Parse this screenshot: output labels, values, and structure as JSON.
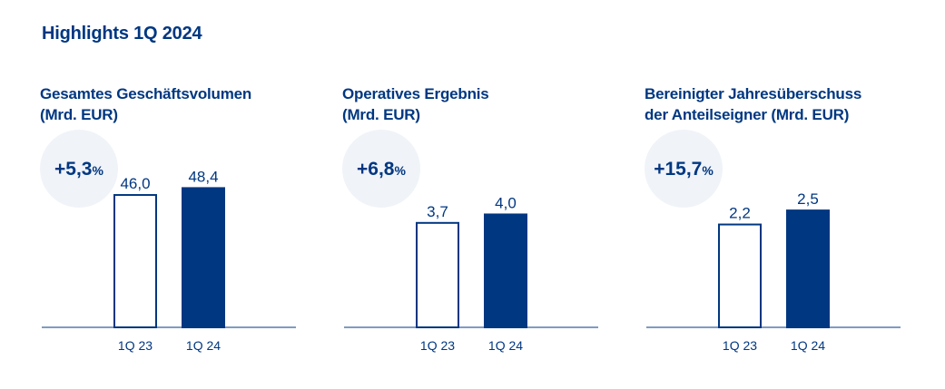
{
  "page": {
    "title": "Highlights 1Q 2024"
  },
  "colors": {
    "primary": "#003781",
    "bubble": "#f0f3f8",
    "axis": "#003781",
    "bar_empty": "#ffffff"
  },
  "chart_data": [
    {
      "type": "bar",
      "title_lines": [
        "Gesamtes Geschäftsvolumen",
        "(Mrd. EUR)"
      ],
      "change": {
        "value": "+5,3",
        "unit": "%"
      },
      "categories": [
        "1Q 23",
        "1Q 24"
      ],
      "values": [
        46.0,
        48.4
      ],
      "labels": [
        "46,0",
        "48,4"
      ],
      "ylim": [
        0,
        52
      ],
      "grid": false,
      "styles": [
        "outline",
        "filled"
      ]
    },
    {
      "type": "bar",
      "title_lines": [
        "Operatives Ergebnis",
        "(Mrd. EUR)"
      ],
      "change": {
        "value": "+6,8",
        "unit": "%"
      },
      "categories": [
        "1Q 23",
        "1Q 24"
      ],
      "values": [
        3.7,
        4.0
      ],
      "labels": [
        "3,7",
        "4,0"
      ],
      "ylim": [
        0,
        5.3
      ],
      "grid": false,
      "styles": [
        "outline",
        "filled"
      ]
    },
    {
      "type": "bar",
      "title_lines": [
        "Bereinigter Jahresüberschuss",
        "der Anteilseigner (Mrd. EUR)"
      ],
      "change": {
        "value": "+15,7",
        "unit": "%"
      },
      "categories": [
        "1Q 23",
        "1Q 24"
      ],
      "values": [
        2.2,
        2.5
      ],
      "labels": [
        "2,2",
        "2,5"
      ],
      "ylim": [
        0,
        3.2
      ],
      "grid": false,
      "styles": [
        "outline",
        "filled"
      ]
    }
  ]
}
